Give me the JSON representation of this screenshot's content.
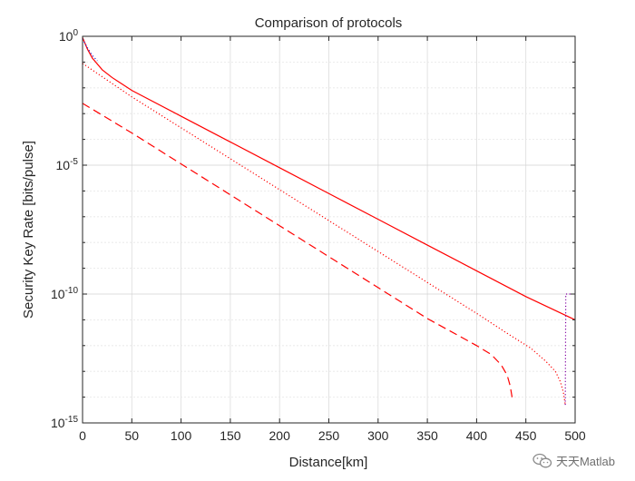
{
  "chart_data": {
    "type": "line",
    "title": "Comparison of protocols",
    "xlabel": "Distance[km]",
    "ylabel": "Security Key Rate [bits/pulse]",
    "xlim": [
      0,
      500
    ],
    "ylim_log10": [
      -15,
      0
    ],
    "yscale": "log",
    "grid": true,
    "x_ticks": [
      0,
      50,
      100,
      150,
      200,
      250,
      300,
      350,
      400,
      450,
      500
    ],
    "y_ticks": [
      {
        "exp": -15,
        "base": "10",
        "sup": "-15"
      },
      {
        "exp": -10,
        "base": "10",
        "sup": "-10"
      },
      {
        "exp": -5,
        "base": "10",
        "sup": "-5"
      },
      {
        "exp": 0,
        "base": "10",
        "sup": "0"
      }
    ],
    "series": [
      {
        "style": "solid",
        "color": "#ff0000",
        "points": [
          [
            0,
            -0.05
          ],
          [
            5,
            -0.5
          ],
          [
            10,
            -0.85
          ],
          [
            20,
            -1.3
          ],
          [
            30,
            -1.6
          ],
          [
            40,
            -1.85
          ],
          [
            50,
            -2.1
          ],
          [
            100,
            -3.1
          ],
          [
            150,
            -4.1
          ],
          [
            200,
            -5.1
          ],
          [
            250,
            -6.1
          ],
          [
            300,
            -7.1
          ],
          [
            350,
            -8.1
          ],
          [
            400,
            -9.1
          ],
          [
            450,
            -10.1
          ],
          [
            500,
            -11.0
          ]
        ]
      },
      {
        "style": "dotted",
        "color": "#ff0000",
        "points": [
          [
            0,
            -1.05
          ],
          [
            50,
            -2.35
          ],
          [
            100,
            -3.55
          ],
          [
            150,
            -4.75
          ],
          [
            200,
            -5.95
          ],
          [
            250,
            -7.15
          ],
          [
            300,
            -8.35
          ],
          [
            350,
            -9.55
          ],
          [
            400,
            -10.75
          ],
          [
            430,
            -11.5
          ],
          [
            455,
            -12.1
          ],
          [
            470,
            -12.6
          ],
          [
            480,
            -13.0
          ],
          [
            485,
            -13.4
          ],
          [
            488,
            -13.8
          ],
          [
            490,
            -14.3
          ]
        ]
      },
      {
        "style": "dashed",
        "color": "#ff0000",
        "points": [
          [
            0,
            -2.6
          ],
          [
            50,
            -3.75
          ],
          [
            100,
            -4.95
          ],
          [
            150,
            -6.15
          ],
          [
            200,
            -7.35
          ],
          [
            250,
            -8.55
          ],
          [
            300,
            -9.75
          ],
          [
            350,
            -10.95
          ],
          [
            400,
            -12.0
          ],
          [
            415,
            -12.35
          ],
          [
            425,
            -12.75
          ],
          [
            431,
            -13.15
          ],
          [
            434,
            -13.55
          ],
          [
            436,
            -14.0
          ]
        ]
      },
      {
        "style": "dotted",
        "color": "#1e1ed2",
        "points": [
          [
            0,
            -0.1
          ],
          [
            5,
            -0.45
          ],
          [
            10,
            -0.75
          ],
          [
            15,
            -0.95
          ]
        ]
      },
      {
        "style": "dotted",
        "color": "#8000a0",
        "points": [
          [
            490,
            -14.3
          ],
          [
            490.5,
            -10.0
          ],
          [
            496,
            -10.0
          ]
        ]
      }
    ]
  },
  "watermark": {
    "text": "天天Matlab",
    "icon": "wechat-icon"
  }
}
